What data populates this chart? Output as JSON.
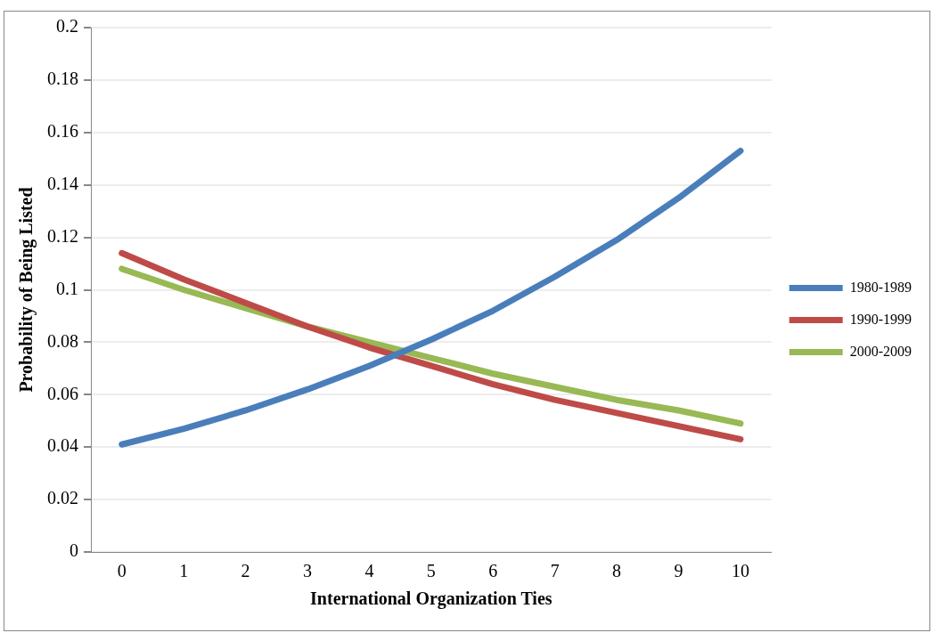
{
  "chart_data": {
    "type": "line",
    "xlabel": "International Organization Ties",
    "ylabel": "Probability of Being Listed",
    "categories": [
      "0",
      "1",
      "2",
      "3",
      "4",
      "5",
      "6",
      "7",
      "8",
      "9",
      "10"
    ],
    "series": [
      {
        "name": "1980-1989",
        "color": "#4a7ebb",
        "values": [
          0.041,
          0.047,
          0.054,
          0.062,
          0.071,
          0.081,
          0.092,
          0.105,
          0.119,
          0.135,
          0.153
        ]
      },
      {
        "name": "1990-1999",
        "color": "#be4b48",
        "values": [
          0.114,
          0.104,
          0.095,
          0.086,
          0.078,
          0.071,
          0.064,
          0.058,
          0.053,
          0.048,
          0.043
        ]
      },
      {
        "name": "2000-2009",
        "color": "#98b954",
        "values": [
          0.108,
          0.1,
          0.093,
          0.086,
          0.08,
          0.074,
          0.068,
          0.063,
          0.058,
          0.054,
          0.049
        ]
      }
    ],
    "ylim": [
      0,
      0.2
    ],
    "yticks": [
      0,
      0.02,
      0.04,
      0.06,
      0.08,
      0.1,
      0.12,
      0.14,
      0.16,
      0.18,
      0.2
    ],
    "grid": "y",
    "legend": "right",
    "marker": "none",
    "line_style": "solid"
  }
}
